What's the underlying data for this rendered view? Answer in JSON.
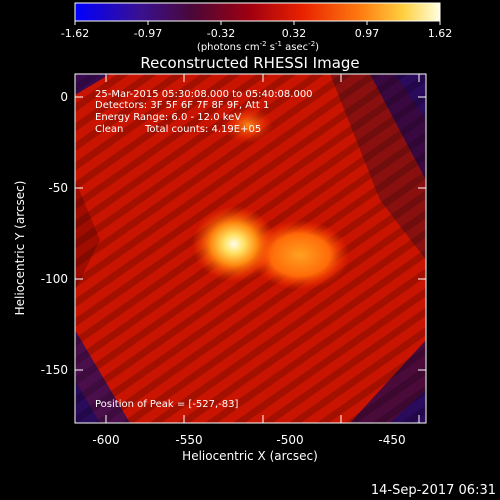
{
  "colorbar": {
    "ticks": [
      "-1.62",
      "-0.97",
      "-0.32",
      "0.32",
      "0.97",
      "1.62"
    ],
    "units_main": "(photons cm",
    "units_exp1": "-2",
    "units_mid": " s",
    "units_exp2": "-1",
    "units_end": " asec",
    "units_exp3": "-2",
    "units_close": ")"
  },
  "title": "Reconstructed RHESSI Image",
  "info": {
    "line1": "25-Mar-2015 05:30:08.000 to 05:40:08.000",
    "line2": "Detectors: 3F 5F 6F 7F 8F 9F, Att 1",
    "line3": "Energy Range: 6.0 - 12.0 keV",
    "line4_a": "Clean",
    "line4_b": "Total counts: 4.19E+05"
  },
  "peak_label": "Position of Peak = [-527,-83]",
  "axes": {
    "xlabel": "Heliocentric X (arcsec)",
    "ylabel": "Heliocentric Y (arcsec)",
    "xticks": [
      "-600",
      "-550",
      "-500",
      "-450"
    ],
    "yticks": [
      "0",
      "-50",
      "-100",
      "-150"
    ]
  },
  "timestamp": "14-Sep-2017 06:31",
  "colors": {
    "background": "#000000",
    "foreground": "#ffffff",
    "map_low": "#2a0a5a",
    "map_mid": "#d01800",
    "map_high": "#ffffd0"
  }
}
